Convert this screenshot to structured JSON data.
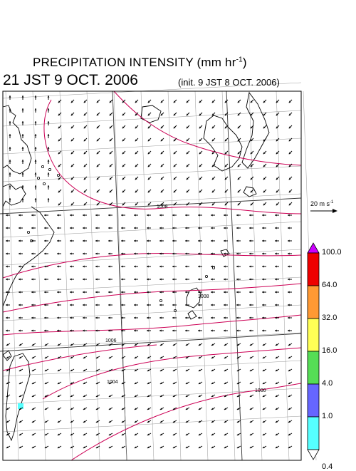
{
  "title": {
    "main": "PRECIPITATION INTENSITY (mm hr",
    "exp": "-1",
    "close": ")"
  },
  "valid_time": "21 JST 9 OCT. 2006",
  "init_time": "(init. 9 JST 8 OCT. 2006)",
  "reference_vector": {
    "value": "20 m s",
    "exp": "-1"
  },
  "colorbar": {
    "labels": [
      "100.0",
      "64.0",
      "32.0",
      "16.0",
      "4.0",
      "1.0",
      "0.4"
    ],
    "colors": [
      "#cc00ff",
      "#ee0000",
      "#ff9933",
      "#ffff55",
      "#55dd55",
      "#6666ff",
      "#55ffff"
    ]
  },
  "isobars": [
    {
      "label": "1008"
    },
    {
      "label": "1008"
    },
    {
      "label": "1006"
    },
    {
      "label": "1004"
    },
    {
      "label": "1000"
    }
  ],
  "colors": {
    "isobar": "#cc0055",
    "grid": "#9a9a9a",
    "coast": "#000000",
    "precip_patch": "#55ffff"
  }
}
